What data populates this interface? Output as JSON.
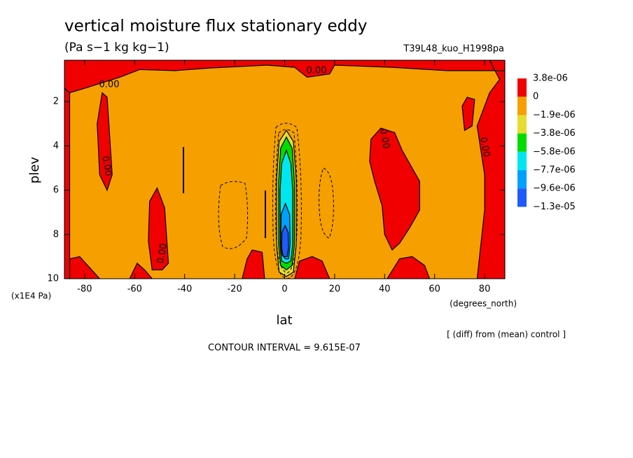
{
  "chart_data": {
    "type": "contour",
    "title": "vertical moisture flux stationary eddy",
    "subtitle": "(Pa s−1 kg kg−1)",
    "run_label": "T39L48_kuo_H1998pa",
    "x_label": "lat",
    "x_units": "(degrees_north)",
    "y_label": "plev",
    "y_units": "(x1E4 Pa)",
    "note": "[ (diff) from (mean) control ]",
    "contour_interval": "CONTOUR INTERVAL = 9.615E-07",
    "xlim": [
      -88.1,
      88.1
    ],
    "xticks": [
      -80,
      -60,
      -40,
      -20,
      0,
      20,
      40,
      60,
      80
    ],
    "ylim": [
      10,
      0.13
    ],
    "yticks": [
      2,
      4,
      6,
      8,
      10
    ],
    "background_color": "#f5a000",
    "colorbar": {
      "levels": [
        {
          "value": 3.8e-06,
          "label": "3.8e-06"
        },
        0,
        {
          "value": -1.9e-06,
          "label": "−1.9e-06"
        },
        {
          "value": -3.8e-06,
          "label": "−3.8e-06"
        },
        {
          "value": -5.8e-06,
          "label": "−5.8e-06"
        },
        {
          "value": -7.7e-06,
          "label": "−7.7e-06"
        },
        {
          "value": -9.6e-06,
          "label": "−9.6e-06"
        },
        {
          "value": -1.3e-05,
          "label": "−1.3e-05"
        }
      ],
      "colors": [
        "#f00000",
        "#f5a000",
        "#e6dc32",
        "#00dc00",
        "#00e6f0",
        "#00a0ff",
        "#1e5aff"
      ]
    },
    "regions": [
      {
        "color": "#f00000",
        "lat": [
          -88.1,
          88.1,
          88.1,
          65,
          43,
          20,
          18,
          9,
          4,
          -7,
          -30,
          -44,
          -58,
          -66,
          -80,
          -86,
          -88.1
        ],
        "plev": [
          0.13,
          0.13,
          0.6,
          0.6,
          0.45,
          0.35,
          0.75,
          0.9,
          0.45,
          0.35,
          0.48,
          0.6,
          0.55,
          0.9,
          1.4,
          1.6,
          1.4
        ]
      },
      {
        "color": "#f00000",
        "lat": [
          -88.1,
          -86,
          -86,
          -88.1
        ],
        "plev": [
          1.4,
          1.6,
          10,
          10
        ]
      },
      {
        "color": "#f00000",
        "lat": [
          -86,
          -82,
          -78,
          -74,
          -86
        ],
        "plev": [
          9.1,
          9.0,
          9.5,
          10,
          10
        ]
      },
      {
        "color": "#f00000",
        "lat": [
          -73,
          -71,
          -69,
          -71,
          -74,
          -75
        ],
        "plev": [
          1.6,
          1.8,
          5.3,
          6.0,
          5.3,
          3.0
        ]
      },
      {
        "color": "#f00000",
        "lat": [
          -54,
          -51,
          -48,
          -46.5,
          -49,
          -53,
          -54.5
        ],
        "plev": [
          6.5,
          5.9,
          6.8,
          9.3,
          9.6,
          9.6,
          8.3
        ]
      },
      {
        "color": "#f00000",
        "lat": [
          -62,
          -59,
          -56,
          -53
        ],
        "plev": [
          10,
          9.3,
          9.6,
          10
        ]
      },
      {
        "color": "#f00000",
        "lat": [
          -17,
          -15,
          -13,
          -9,
          -8
        ],
        "plev": [
          10,
          9.1,
          8.7,
          8.8,
          10
        ]
      },
      {
        "color": "#f00000",
        "lat": [
          4,
          6,
          11,
          15,
          18
        ],
        "plev": [
          10,
          9.2,
          9.0,
          9.2,
          10
        ]
      },
      {
        "color": "#f00000",
        "lat": [
          34.5,
          38.5,
          44,
          47,
          54,
          54,
          50,
          46,
          43,
          40,
          39,
          36,
          34
        ],
        "plev": [
          3.7,
          3.2,
          3.4,
          4.2,
          5.6,
          6.9,
          7.7,
          8.4,
          8.7,
          8.0,
          6.7,
          5.6,
          4.7
        ]
      },
      {
        "color": "#f00000",
        "lat": [
          41,
          46,
          51,
          56,
          58
        ],
        "plev": [
          10,
          9.1,
          9.0,
          9.4,
          10
        ]
      },
      {
        "color": "#f00000",
        "lat": [
          82,
          88.1,
          88.1,
          77,
          80,
          80,
          77,
          82,
          86
        ],
        "plev": [
          0.13,
          0.13,
          10,
          10,
          6.9,
          5.3,
          3.1,
          1.6,
          1.0
        ]
      },
      {
        "color": "#f00000",
        "lat": [
          71,
          73,
          76,
          75,
          72
        ],
        "plev": [
          2.2,
          1.8,
          1.9,
          3.1,
          3.3
        ]
      },
      {
        "color": "#e6dc32",
        "lat": [
          0.7,
          3.5,
          4.6,
          4.6,
          3.5,
          0.7,
          -2.2,
          -3.2,
          -3.2,
          -2.2
        ],
        "plev": [
          3.3,
          3.8,
          5.5,
          8.5,
          9.7,
          9.9,
          9.7,
          8.5,
          5.5,
          3.8
        ]
      },
      {
        "color": "#00dc00",
        "lat": [
          0.7,
          3,
          3.9,
          3.9,
          3,
          0.7,
          -1.6,
          -2.4,
          -2.4,
          -1.6
        ],
        "plev": [
          3.6,
          4.1,
          5.6,
          8.5,
          9.4,
          9.6,
          9.4,
          8.5,
          5.6,
          4.1
        ]
      },
      {
        "color": "#00e6f0",
        "lat": [
          0.7,
          2.5,
          3.2,
          3.2,
          2.5,
          0.7,
          -1.2,
          -1.8,
          -1.8,
          -1.2
        ],
        "plev": [
          4.2,
          4.8,
          6,
          8.5,
          9.2,
          9.3,
          9.2,
          8.5,
          6,
          4.8
        ]
      },
      {
        "color": "#00a0ff",
        "lat": [
          0.3,
          2,
          2.2,
          1.6,
          0.3,
          -1.2,
          -1.6,
          -1.4
        ],
        "plev": [
          6.6,
          7.1,
          8.4,
          9.1,
          9.1,
          8.9,
          8.2,
          7.1
        ]
      },
      {
        "color": "#1e5aff",
        "lat": [
          0.2,
          1.4,
          1.6,
          1,
          -0.6,
          -1.2,
          -1.1
        ],
        "plev": [
          7.6,
          7.9,
          8.6,
          9,
          9,
          8.6,
          7.9
        ]
      }
    ],
    "contour_labels": [
      "0.00",
      "0.00",
      "0.00",
      "0.00",
      "0.00",
      "0.00"
    ]
  }
}
